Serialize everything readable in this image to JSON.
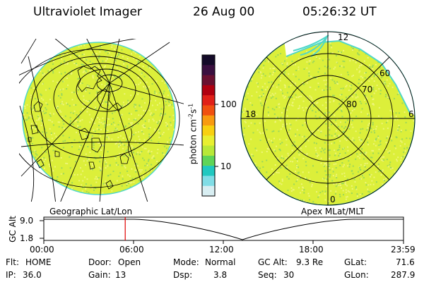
{
  "header": {
    "instrument": "Ultraviolet Imager",
    "date": "26 Aug 00",
    "time": "05:26:32 UT"
  },
  "colors": {
    "background": "#ffffff",
    "auroral_fill": "#dcef3a",
    "speckle_light": "#eef57a",
    "speckle_green": "#9bd85a",
    "limb": "#4fd7c8",
    "time_marker": "#e00000"
  },
  "geo_map": {
    "caption": "Geographic Lat/Lon"
  },
  "polar_plot": {
    "caption": "Apex MLat/MLT",
    "mlt_labels": [
      "12",
      "18",
      "6",
      "0"
    ],
    "mlat_labels": [
      "60",
      "70",
      "80"
    ]
  },
  "colorbar": {
    "unit_label": "photon cm",
    "unit_exp1": "-2",
    "unit_mid": "s",
    "unit_exp2": "-1",
    "tick_labels": [
      "100",
      "10"
    ],
    "colors_top_to_bottom": [
      "#140a28",
      "#3a0f3f",
      "#6a1030",
      "#b00010",
      "#e02018",
      "#f05010",
      "#f89a10",
      "#f8d010",
      "#e8ef30",
      "#b8e838",
      "#5fd458",
      "#20c8c0",
      "#80dde6",
      "#d8eef2"
    ]
  },
  "timeline": {
    "ylabel": "GC Alt",
    "y_ticks": [
      "9.0",
      "1.8"
    ],
    "x_ticks": [
      "00:00",
      "06:00",
      "12:00",
      "18:00",
      "23:59"
    ],
    "current_time_fraction": 0.2264
  },
  "status": {
    "flt_label": "Flt:",
    "flt_value": "HOME",
    "ip_label": "IP:",
    "ip_value": "36.0",
    "door_label": "Door:",
    "door_value": "Open",
    "gain_label": "Gain:",
    "gain_value": "13",
    "mode_label": "Mode:",
    "mode_value": "Normal",
    "dsp_label": "Dsp:",
    "dsp_value": "3.8",
    "gcalt_label": "GC Alt:",
    "gcalt_value": "9.3 Re",
    "seq_label": "Seq:",
    "seq_value": "30",
    "glat_label": "GLat:",
    "glat_value": "71.6",
    "glon_label": "GLon:",
    "glon_value": "287.9"
  }
}
